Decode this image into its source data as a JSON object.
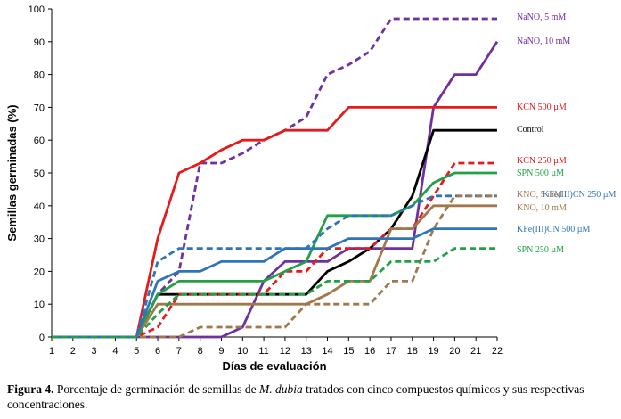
{
  "chart_data": {
    "type": "line",
    "xlabel": "Días de evaluación",
    "ylabel": "Semillas germinadas (%)",
    "xlim": [
      1,
      22
    ],
    "ylim": [
      0,
      100
    ],
    "x_ticks": [
      1,
      2,
      3,
      4,
      5,
      6,
      7,
      8,
      9,
      10,
      11,
      12,
      13,
      14,
      15,
      16,
      17,
      18,
      19,
      20,
      21,
      22
    ],
    "y_ticks": [
      0,
      10,
      20,
      30,
      40,
      50,
      60,
      70,
      80,
      90,
      100
    ],
    "grid": false,
    "legend": "direct labels at line ends",
    "series": [
      {
        "name": "NaNO, 5 mM",
        "color": "#7030a0",
        "dash": "dashed",
        "x": [
          1,
          5,
          6,
          7,
          8,
          9,
          10,
          11,
          12,
          13,
          14,
          15,
          16,
          17,
          18,
          19,
          20,
          21,
          22
        ],
        "y": [
          0,
          0,
          13,
          20,
          53,
          53,
          56,
          60,
          63,
          67,
          80,
          83,
          87,
          97,
          97,
          97,
          97,
          97,
          97
        ]
      },
      {
        "name": "NaNO, 10 mM",
        "color": "#7030a0",
        "dash": "solid",
        "x": [
          1,
          9,
          10,
          11,
          12,
          13,
          14,
          15,
          16,
          17,
          18,
          19,
          20,
          21,
          22
        ],
        "y": [
          0,
          0,
          3,
          17,
          23,
          23,
          23,
          27,
          27,
          27,
          27,
          70,
          80,
          80,
          90
        ]
      },
      {
        "name": "KCN 500 µM",
        "color": "#e41a1c",
        "dash": "solid",
        "x": [
          1,
          5,
          6,
          7,
          8,
          9,
          10,
          11,
          12,
          13,
          14,
          15,
          16,
          17,
          18,
          19,
          20,
          21,
          22
        ],
        "y": [
          0,
          0,
          30,
          50,
          53,
          57,
          60,
          60,
          63,
          63,
          63,
          70,
          70,
          70,
          70,
          70,
          70,
          70,
          70
        ]
      },
      {
        "name": "Control",
        "color": "#000000",
        "dash": "solid",
        "x": [
          1,
          5,
          6,
          7,
          8,
          9,
          10,
          11,
          12,
          13,
          14,
          15,
          16,
          17,
          18,
          19,
          20,
          21,
          22
        ],
        "y": [
          0,
          0,
          13,
          13,
          13,
          13,
          13,
          13,
          13,
          13,
          20,
          23,
          27,
          33,
          43,
          63,
          63,
          63,
          63
        ]
      },
      {
        "name": "KCN 250 µM",
        "color": "#e41a1c",
        "dash": "dashed",
        "x": [
          1,
          5,
          6,
          7,
          8,
          9,
          10,
          11,
          12,
          13,
          14,
          15,
          16,
          17,
          18,
          19,
          20,
          21,
          22
        ],
        "y": [
          0,
          0,
          3,
          13,
          13,
          13,
          13,
          13,
          20,
          20,
          27,
          27,
          27,
          33,
          33,
          43,
          53,
          53,
          53
        ]
      },
      {
        "name": "SPN 500 µM",
        "color": "#22a045",
        "dash": "solid",
        "x": [
          1,
          5,
          6,
          7,
          8,
          9,
          10,
          11,
          12,
          13,
          14,
          15,
          16,
          17,
          18,
          19,
          20,
          21,
          22
        ],
        "y": [
          0,
          0,
          13,
          17,
          17,
          17,
          17,
          17,
          20,
          23,
          37,
          37,
          37,
          37,
          40,
          47,
          50,
          50,
          50
        ]
      },
      {
        "name": "KFe(III)CN 250 µM",
        "color": "#2e75b6",
        "dash": "dashed",
        "x": [
          1,
          5,
          6,
          7,
          8,
          9,
          10,
          11,
          12,
          13,
          14,
          15,
          16,
          17,
          18,
          19,
          20,
          21,
          22
        ],
        "y": [
          0,
          0,
          23,
          27,
          27,
          27,
          27,
          27,
          27,
          27,
          33,
          37,
          37,
          37,
          40,
          43,
          43,
          43,
          43
        ]
      },
      {
        "name": "KNO, 5 mM",
        "color": "#a0784a",
        "dash": "dashed",
        "x": [
          1,
          7,
          8,
          9,
          10,
          11,
          12,
          13,
          14,
          15,
          16,
          17,
          18,
          19,
          20,
          21,
          22
        ],
        "y": [
          0,
          0,
          3,
          3,
          3,
          3,
          3,
          10,
          10,
          10,
          10,
          17,
          17,
          33,
          43,
          43,
          43
        ]
      },
      {
        "name": "KNO, 10 mM",
        "color": "#a0784a",
        "dash": "solid",
        "x": [
          1,
          5,
          6,
          7,
          8,
          9,
          10,
          11,
          12,
          13,
          14,
          15,
          16,
          17,
          18,
          19,
          20,
          21,
          22
        ],
        "y": [
          0,
          0,
          10,
          10,
          10,
          10,
          10,
          10,
          10,
          10,
          13,
          17,
          17,
          33,
          33,
          40,
          40,
          40,
          40
        ]
      },
      {
        "name": "KFe(III)CN 500 µM",
        "color": "#2e75b6",
        "dash": "solid",
        "x": [
          1,
          5,
          6,
          7,
          8,
          9,
          10,
          11,
          12,
          13,
          14,
          15,
          16,
          17,
          18,
          19,
          20,
          21,
          22
        ],
        "y": [
          0,
          0,
          17,
          20,
          20,
          23,
          23,
          23,
          27,
          27,
          27,
          30,
          30,
          30,
          30,
          33,
          33,
          33,
          33
        ]
      },
      {
        "name": "SPN 250 µM",
        "color": "#22a045",
        "dash": "dashed",
        "x": [
          1,
          5,
          6,
          7,
          8,
          9,
          10,
          11,
          12,
          13,
          14,
          15,
          16,
          17,
          18,
          19,
          20,
          21,
          22
        ],
        "y": [
          0,
          0,
          7,
          13,
          13,
          13,
          13,
          13,
          13,
          13,
          17,
          17,
          17,
          23,
          23,
          23,
          27,
          27,
          27
        ]
      }
    ]
  },
  "caption": {
    "label": "Figura 4.",
    "text_before": " Porcentaje de germinación de semillas de ",
    "species": "M. dubia",
    "text_after": " tratados con cinco compuestos químicos y sus respectivas concentraciones."
  }
}
